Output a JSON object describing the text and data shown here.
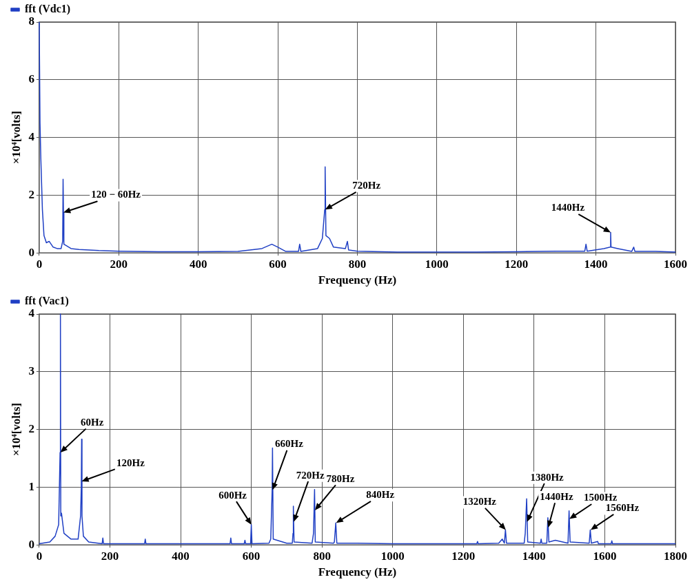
{
  "chart_data": [
    {
      "type": "line",
      "xlabel": "Frequency (Hz)",
      "ylabel": "×10⁴[volts]",
      "xlim": [
        0,
        1600
      ],
      "xticks": [
        0,
        200,
        400,
        600,
        800,
        1000,
        1200,
        1400,
        1600
      ],
      "ylim": [
        0,
        8
      ],
      "yticks": [
        0,
        2,
        4,
        6,
        8
      ],
      "grid": true,
      "legend": "top left",
      "marker": "none",
      "line_style": "solid",
      "series": [
        {
          "name": "fft (Vdc1)",
          "color": "#1f3fc4",
          "x": [
            0,
            2,
            4,
            8,
            12,
            18,
            25,
            35,
            45,
            55,
            59,
            60,
            61,
            62,
            68,
            80,
            100,
            150,
            200,
            300,
            400,
            500,
            560,
            585,
            600,
            620,
            652,
            655,
            658,
            700,
            712,
            718,
            719,
            721,
            730,
            740,
            770,
            775,
            778,
            800,
            900,
            1000,
            1100,
            1200,
            1300,
            1372,
            1375,
            1378,
            1420,
            1436,
            1437,
            1438,
            1455,
            1490,
            1495,
            1498,
            1550,
            1600
          ],
          "values": [
            8,
            4.5,
            3.3,
            1.5,
            0.6,
            0.35,
            0.4,
            0.2,
            0.15,
            0.15,
            0.4,
            2.55,
            1.4,
            0.3,
            0.25,
            0.15,
            0.12,
            0.08,
            0.06,
            0.04,
            0.04,
            0.05,
            0.15,
            0.3,
            0.2,
            0.05,
            0.05,
            0.3,
            0.05,
            0.15,
            0.5,
            1.5,
            2.98,
            0.6,
            0.5,
            0.2,
            0.15,
            0.4,
            0.1,
            0.06,
            0.03,
            0.03,
            0.03,
            0.04,
            0.06,
            0.06,
            0.3,
            0.06,
            0.15,
            0.2,
            0.71,
            0.2,
            0.15,
            0.05,
            0.2,
            0.05,
            0.05,
            0.03
          ]
        }
      ],
      "annotations": [
        {
          "text": "120 − 60Hz",
          "x": 61,
          "y": 1.4
        },
        {
          "text": "720Hz",
          "x": 719,
          "y": 1.5
        },
        {
          "text": "1440Hz",
          "x": 1437,
          "y": 0.71
        }
      ]
    },
    {
      "type": "line",
      "xlabel": "Frequency (Hz)",
      "ylabel": "×10⁴[volts]",
      "xlim": [
        0,
        1800
      ],
      "xticks": [
        0,
        200,
        400,
        600,
        800,
        1000,
        1200,
        1400,
        1600,
        1800
      ],
      "ylim": [
        0,
        4
      ],
      "yticks": [
        0,
        1,
        2,
        3,
        4
      ],
      "grid": true,
      "legend": "top left",
      "marker": "none",
      "line_style": "solid",
      "series": [
        {
          "name": "fft (Vac1)",
          "color": "#1f3fc4",
          "x": [
            0,
            30,
            45,
            55,
            59,
            60,
            61,
            63,
            70,
            90,
            110,
            117,
            119,
            120,
            121,
            125,
            140,
            178,
            180,
            182,
            298,
            300,
            302,
            400,
            540,
            542,
            544,
            580,
            582,
            584,
            598,
            600,
            602,
            650,
            655,
            659,
            660,
            662,
            700,
            716,
            718,
            719,
            721,
            772,
            776,
            779,
            781,
            833,
            835,
            839,
            842,
            900,
            1000,
            1100,
            1200,
            1238,
            1240,
            1242,
            1300,
            1310,
            1316,
            1319,
            1322,
            1372,
            1375,
            1379,
            1382,
            1418,
            1420,
            1422,
            1436,
            1439,
            1442,
            1460,
            1496,
            1499,
            1502,
            1556,
            1559,
            1562,
            1580,
            1582,
            1618,
            1620,
            1622,
            1700,
            1800
          ],
          "values": [
            0.02,
            0.05,
            0.15,
            0.35,
            1.6,
            4,
            0.5,
            0.55,
            0.2,
            0.1,
            0.1,
            0.5,
            1.0,
            1.83,
            0.5,
            0.15,
            0.05,
            0.02,
            0.12,
            0.02,
            0.02,
            0.1,
            0.02,
            0.02,
            0.02,
            0.12,
            0.02,
            0.02,
            0.08,
            0.02,
            0.02,
            0.35,
            0.02,
            0.03,
            0.1,
            0.95,
            1.68,
            0.1,
            0.03,
            0.03,
            0.2,
            0.67,
            0.05,
            0.03,
            0.2,
            0.96,
            0.05,
            0.03,
            0.05,
            0.38,
            0.03,
            0.03,
            0.02,
            0.02,
            0.02,
            0.02,
            0.06,
            0.02,
            0.03,
            0.1,
            0.03,
            0.26,
            0.03,
            0.03,
            0.2,
            0.8,
            0.05,
            0.03,
            0.1,
            0.03,
            0.03,
            0.47,
            0.05,
            0.08,
            0.03,
            0.59,
            0.05,
            0.03,
            0.26,
            0.03,
            0.06,
            0.02,
            0.02,
            0.07,
            0.02,
            0.02,
            0.02
          ]
        }
      ],
      "annotations": [
        {
          "text": "60Hz",
          "x": 60,
          "y": 1.6
        },
        {
          "text": "120Hz",
          "x": 120,
          "y": 1.1
        },
        {
          "text": "600Hz",
          "x": 600,
          "y": 0.35
        },
        {
          "text": "660Hz",
          "x": 660,
          "y": 0.95
        },
        {
          "text": "720Hz",
          "x": 720,
          "y": 0.4
        },
        {
          "text": "780Hz",
          "x": 780,
          "y": 0.6
        },
        {
          "text": "840Hz",
          "x": 840,
          "y": 0.38
        },
        {
          "text": "1320Hz",
          "x": 1320,
          "y": 0.26
        },
        {
          "text": "1380Hz",
          "x": 1380,
          "y": 0.4
        },
        {
          "text": "1440Hz",
          "x": 1440,
          "y": 0.3
        },
        {
          "text": "1500Hz",
          "x": 1500,
          "y": 0.45
        },
        {
          "text": "1560Hz",
          "x": 1560,
          "y": 0.26
        }
      ]
    }
  ]
}
